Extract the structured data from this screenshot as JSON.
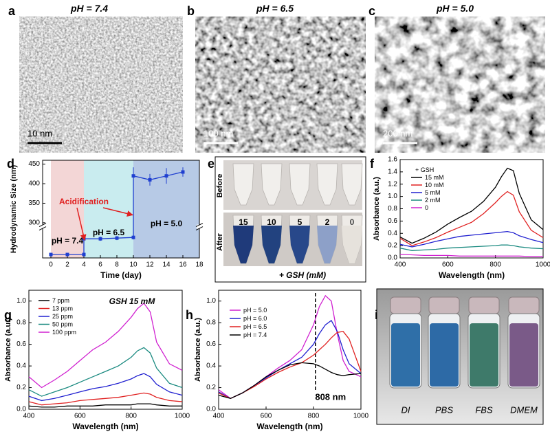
{
  "panels": [
    {
      "label": "a",
      "title": "pH = 7.4",
      "scale_bar": "10 nm"
    },
    {
      "label": "b",
      "title": "pH = 6.5",
      "scale_bar": "100 nm"
    },
    {
      "label": "c",
      "title": "pH = 5.0",
      "scale_bar": "200 nm"
    }
  ],
  "photo_e": {
    "label": "e",
    "rows": [
      "Before",
      "After"
    ],
    "tube_labels": [
      "15",
      "10",
      "5",
      "2",
      "0"
    ],
    "caption": "+ GSH (mM)"
  },
  "photo_i": {
    "label": "i",
    "vials": [
      "DI",
      "PBS",
      "FBS",
      "DMEM"
    ]
  },
  "chart_data": [
    {
      "type": "line",
      "label": "d",
      "x_label": "Time (day)",
      "y_label": "Hydrodynamic Size (nm)",
      "color": "#1f3fd0",
      "x": [
        0,
        2,
        4,
        4,
        6,
        8,
        10,
        10,
        12,
        14,
        16
      ],
      "values": [
        5,
        5,
        5,
        28,
        28,
        29,
        30,
        420,
        410,
        420,
        430
      ],
      "errors": [
        1,
        1,
        1,
        3,
        3,
        3,
        3,
        22,
        15,
        20,
        12
      ],
      "xlim": [
        -1,
        18
      ],
      "xticks": [
        0,
        2,
        4,
        6,
        8,
        10,
        12,
        14,
        16,
        18
      ],
      "ylim": [
        0,
        460
      ],
      "ybreak": [
        40,
        300
      ],
      "yticks": [
        300,
        350,
        400,
        450
      ],
      "regions": [
        {
          "label": "pH = 7.4",
          "start": 0,
          "end": 4,
          "color": "#f3d6d6"
        },
        {
          "label": "pH = 6.5",
          "start": 4,
          "end": 10,
          "color": "#c9ecef"
        },
        {
          "label": "pH = 5.0",
          "start": 10,
          "end": 18,
          "color": "#b7cae6"
        }
      ],
      "annotation": "Acidification"
    },
    {
      "type": "line",
      "label": "f",
      "x_label": "Wavelength (nm)",
      "y_label": "Absorbance (a.u.)",
      "legend_title": "+ GSH",
      "x": [
        400,
        450,
        500,
        550,
        600,
        650,
        700,
        750,
        800,
        825,
        850,
        875,
        900,
        950,
        1000
      ],
      "series": [
        {
          "name": "15 mM",
          "color": "#000000",
          "values": [
            0.34,
            0.24,
            0.32,
            0.42,
            0.55,
            0.66,
            0.76,
            0.92,
            1.15,
            1.32,
            1.46,
            1.42,
            1.05,
            0.62,
            0.46
          ]
        },
        {
          "name": "10 mM",
          "color": "#e02020",
          "values": [
            0.32,
            0.2,
            0.26,
            0.33,
            0.42,
            0.5,
            0.58,
            0.72,
            0.9,
            1.0,
            1.08,
            1.02,
            0.75,
            0.45,
            0.33
          ]
        },
        {
          "name": "5 mM",
          "color": "#2020d0",
          "values": [
            0.22,
            0.18,
            0.22,
            0.27,
            0.31,
            0.35,
            0.37,
            0.39,
            0.41,
            0.42,
            0.43,
            0.41,
            0.36,
            0.3,
            0.25
          ]
        },
        {
          "name": "2 mM",
          "color": "#1a8a80",
          "values": [
            0.16,
            0.12,
            0.13,
            0.14,
            0.16,
            0.17,
            0.18,
            0.19,
            0.2,
            0.21,
            0.21,
            0.2,
            0.18,
            0.16,
            0.15
          ]
        },
        {
          "name": "0",
          "color": "#d020d0",
          "values": [
            0.06,
            0.05,
            0.04,
            0.04,
            0.04,
            0.03,
            0.03,
            0.03,
            0.03,
            0.03,
            0.03,
            0.03,
            0.03,
            0.02,
            0.02
          ]
        }
      ],
      "xlim": [
        400,
        1000
      ],
      "xticks": [
        400,
        600,
        800,
        1000
      ],
      "ylim": [
        0,
        1.6
      ],
      "yticks": [
        {
          "value": 0,
          "label": "0.0"
        },
        0.2,
        0.4,
        0.6,
        0.8,
        {
          "value": 1,
          "label": "1.0"
        },
        1.2,
        1.4,
        1.6
      ]
    },
    {
      "type": "line",
      "label": "g",
      "x_label": "Wavelength (nm)",
      "y_label": "Absorbance (a.u.)",
      "annotation": "GSH 15 mM",
      "x": [
        400,
        450,
        500,
        550,
        600,
        650,
        700,
        750,
        800,
        825,
        850,
        875,
        900,
        950,
        1000
      ],
      "series": [
        {
          "name": "7 ppm",
          "color": "#000000",
          "values": [
            0.03,
            0.02,
            0.02,
            0.03,
            0.03,
            0.03,
            0.04,
            0.04,
            0.04,
            0.05,
            0.05,
            0.05,
            0.04,
            0.03,
            0.03
          ]
        },
        {
          "name": "13 ppm",
          "color": "#e02020",
          "values": [
            0.07,
            0.04,
            0.05,
            0.06,
            0.08,
            0.09,
            0.1,
            0.11,
            0.13,
            0.14,
            0.15,
            0.14,
            0.11,
            0.08,
            0.07
          ]
        },
        {
          "name": "25 ppm",
          "color": "#2020d0",
          "values": [
            0.12,
            0.08,
            0.1,
            0.13,
            0.16,
            0.19,
            0.21,
            0.24,
            0.28,
            0.31,
            0.33,
            0.3,
            0.23,
            0.16,
            0.13
          ]
        },
        {
          "name": "50 ppm",
          "color": "#1a8a80",
          "values": [
            0.18,
            0.12,
            0.16,
            0.2,
            0.25,
            0.3,
            0.35,
            0.4,
            0.48,
            0.54,
            0.57,
            0.52,
            0.38,
            0.24,
            0.2
          ]
        },
        {
          "name": "100 ppm",
          "color": "#d020d0",
          "values": [
            0.3,
            0.2,
            0.27,
            0.35,
            0.45,
            0.55,
            0.62,
            0.72,
            0.85,
            0.93,
            0.98,
            0.9,
            0.62,
            0.42,
            0.36
          ]
        }
      ],
      "xlim": [
        400,
        1000
      ],
      "xticks": [
        400,
        600,
        800,
        1000
      ],
      "ylim": [
        0,
        1.1
      ],
      "yticks": [
        {
          "value": 0,
          "label": "0.0"
        },
        0.2,
        0.4,
        0.6,
        0.8,
        {
          "value": 1,
          "label": "1.0"
        }
      ]
    },
    {
      "type": "line",
      "label": "h",
      "x_label": "Wavelength (nm)",
      "y_label": "Absorbance (a.u.)",
      "reference_line": {
        "x": 808,
        "label": "808 nm"
      },
      "x": [
        400,
        450,
        500,
        550,
        600,
        650,
        700,
        750,
        800,
        825,
        850,
        875,
        900,
        925,
        950,
        1000
      ],
      "series": [
        {
          "name": "pH = 5.0",
          "color": "#d020d0",
          "values": [
            0.18,
            0.1,
            0.15,
            0.22,
            0.3,
            0.38,
            0.45,
            0.55,
            0.78,
            0.95,
            1.05,
            1.0,
            0.7,
            0.45,
            0.35,
            0.3
          ]
        },
        {
          "name": "pH = 6.0",
          "color": "#2020d0",
          "values": [
            0.16,
            0.1,
            0.15,
            0.22,
            0.29,
            0.36,
            0.42,
            0.48,
            0.6,
            0.7,
            0.78,
            0.82,
            0.72,
            0.55,
            0.42,
            0.33
          ]
        },
        {
          "name": "pH = 6.5",
          "color": "#e02020",
          "values": [
            0.15,
            0.1,
            0.15,
            0.21,
            0.28,
            0.34,
            0.39,
            0.43,
            0.5,
            0.55,
            0.6,
            0.66,
            0.71,
            0.72,
            0.65,
            0.35
          ]
        },
        {
          "name": "pH = 7.4",
          "color": "#000000",
          "values": [
            0.13,
            0.1,
            0.15,
            0.22,
            0.3,
            0.36,
            0.41,
            0.43,
            0.42,
            0.4,
            0.37,
            0.34,
            0.32,
            0.31,
            0.32,
            0.33
          ]
        }
      ],
      "xlim": [
        400,
        1000
      ],
      "xticks": [
        400,
        600,
        800,
        1000
      ],
      "ylim": [
        0,
        1.1
      ],
      "yticks": [
        {
          "value": 0,
          "label": "0.0"
        },
        0.2,
        0.4,
        0.6,
        0.8,
        {
          "value": 1,
          "label": "1.0"
        }
      ]
    }
  ]
}
